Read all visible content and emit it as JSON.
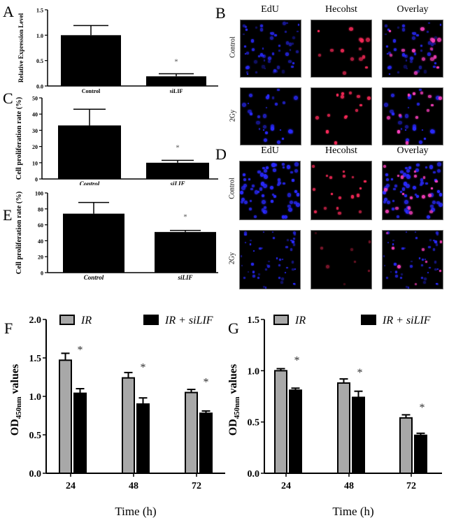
{
  "panel_letters": {
    "A": "A",
    "B": "B",
    "C": "C",
    "D": "D",
    "E": "E",
    "F": "F",
    "G": "G"
  },
  "microscopy": {
    "columns": [
      "EdU",
      "Hecohst",
      "Overlay"
    ],
    "rows": [
      "Control",
      "2Gy"
    ],
    "colors": {
      "edu": "#2a2aff",
      "hoechst": "#ff2a5a",
      "overlay_merge": "#ff40c0"
    }
  },
  "chart_data": [
    {
      "id": "A",
      "type": "bar",
      "title": "",
      "categories": [
        "Control",
        "siLIF"
      ],
      "values": [
        1.0,
        0.19
      ],
      "errors": [
        0.19,
        0.05
      ],
      "significance": [
        "",
        "*"
      ],
      "xlabel": "",
      "ylabel": "Relative Expression Level",
      "ylim": [
        0,
        1.5
      ],
      "yticks": [
        "0.0",
        "0.5",
        "1.0",
        "1.5"
      ],
      "bar_color": "#000000"
    },
    {
      "id": "C",
      "type": "bar",
      "categories": [
        "Control",
        "siLIF"
      ],
      "values": [
        33,
        10
      ],
      "errors": [
        10,
        1.5
      ],
      "significance": [
        "",
        "*"
      ],
      "xlabel": "",
      "ylabel": "Cell proliferation rate (%)",
      "ylim": [
        0,
        50
      ],
      "yticks": [
        "0",
        "10",
        "20",
        "30",
        "40",
        "50"
      ],
      "bar_color": "#000000"
    },
    {
      "id": "E",
      "type": "bar",
      "categories": [
        "Control",
        "siLIF"
      ],
      "values": [
        74,
        51
      ],
      "errors": [
        14,
        2
      ],
      "significance": [
        "",
        "*"
      ],
      "xlabel": "",
      "ylabel": "Cell proliferation rate (%)",
      "ylim": [
        0,
        100
      ],
      "yticks": [
        "0",
        "20",
        "40",
        "60",
        "80",
        "100"
      ],
      "bar_color": "#000000"
    },
    {
      "id": "F",
      "type": "bar",
      "categories": [
        "24",
        "48",
        "72"
      ],
      "series": [
        {
          "name": "IR",
          "values": [
            1.47,
            1.24,
            1.05
          ],
          "errors": [
            0.09,
            0.07,
            0.04
          ],
          "color": "#a8a8a8"
        },
        {
          "name": "IR + siLIF",
          "values": [
            1.04,
            0.9,
            0.78
          ],
          "errors": [
            0.06,
            0.08,
            0.03
          ],
          "color": "#000000"
        }
      ],
      "significance": [
        "*",
        "*",
        "*"
      ],
      "xlabel": "Time (h)",
      "ylabel": "OD450nm values",
      "ylabel_main": "OD",
      "ylabel_sub": "450nm",
      "ylabel_rest": " values",
      "ylim": [
        0,
        2.0
      ],
      "yticks": [
        "0.0",
        "0.5",
        "1.0",
        "1.5",
        "2.0"
      ],
      "legend_position": "top"
    },
    {
      "id": "G",
      "type": "bar",
      "categories": [
        "24",
        "48",
        "72"
      ],
      "series": [
        {
          "name": "IR",
          "values": [
            1.0,
            0.88,
            0.54
          ],
          "errors": [
            0.02,
            0.04,
            0.03
          ],
          "color": "#a8a8a8"
        },
        {
          "name": "IR + siLIF",
          "values": [
            0.81,
            0.74,
            0.37
          ],
          "errors": [
            0.02,
            0.06,
            0.02
          ],
          "color": "#000000"
        }
      ],
      "significance": [
        "*",
        "*",
        "*"
      ],
      "xlabel": "Time (h)",
      "ylabel": "OD450nm values",
      "ylabel_main": "OD",
      "ylabel_sub": "450nm",
      "ylabel_rest": " values",
      "ylim": [
        0,
        1.5
      ],
      "yticks": [
        "0.0",
        "0.5",
        "1.0",
        "1.5"
      ],
      "legend_position": "top"
    }
  ]
}
